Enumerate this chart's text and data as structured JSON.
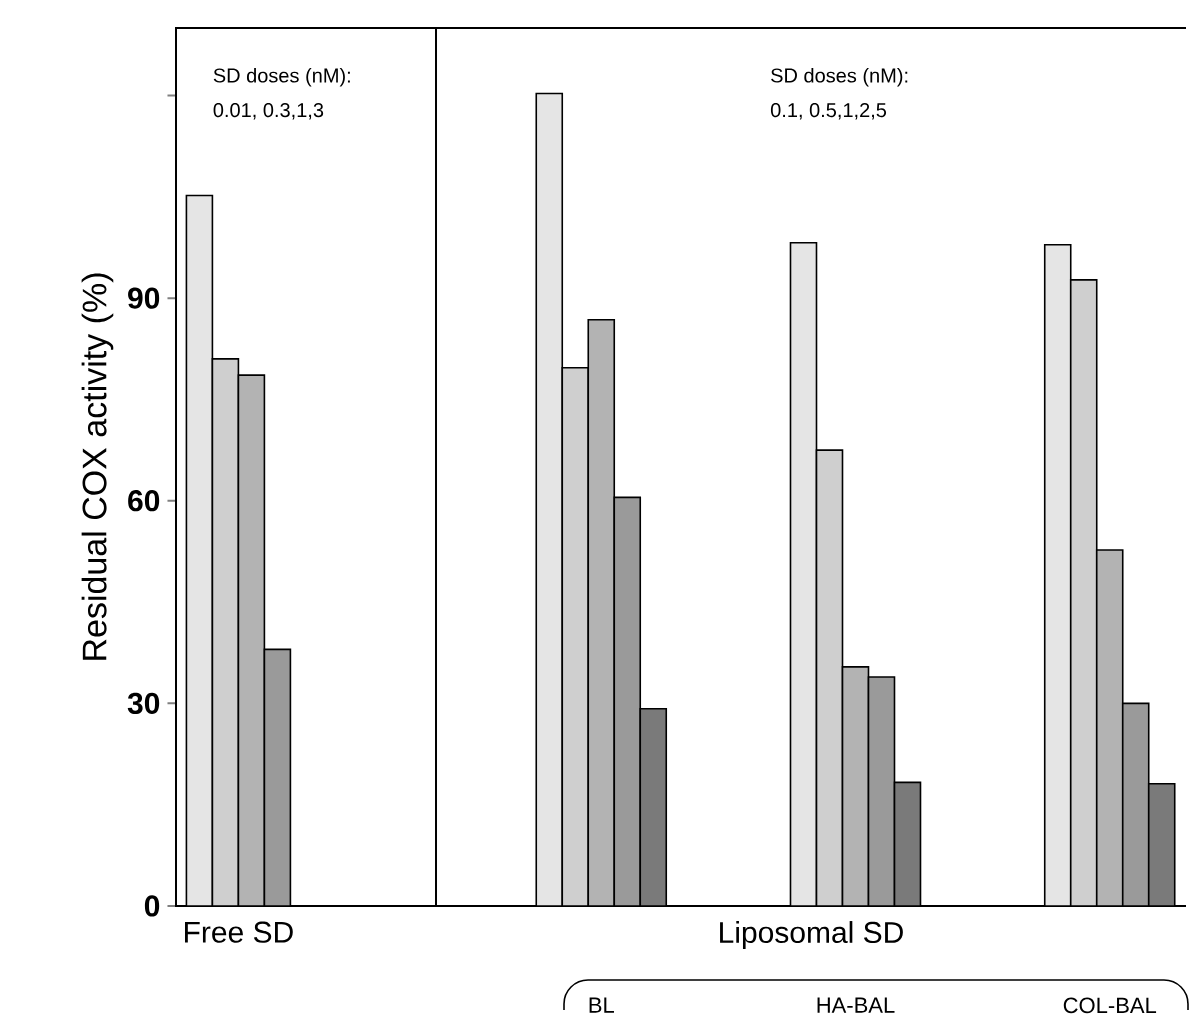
{
  "chart_data": [
    {
      "type": "bar",
      "ylabel": "Residual COX activity (%)",
      "categories": [
        "Free SD"
      ],
      "series": [
        {
          "color": "#e5e5e5",
          "values": [
            105.2
          ]
        },
        {
          "color": "#cfcfcf",
          "values": [
            81
          ]
        },
        {
          "color": "#b3b3b3",
          "values": [
            78.6
          ]
        },
        {
          "color": "#9a9a9a",
          "values": [
            38
          ]
        }
      ],
      "ylim": [
        0,
        130
      ],
      "yticks": [
        0,
        30,
        60,
        90,
        {
          "value": 120,
          "label": null
        }
      ],
      "annotations": [
        "SD doses (nM):",
        "0.01, 0.3,1,3"
      ]
    },
    {
      "type": "bar",
      "xlabel": "Liposomal SD",
      "categories": [
        "BL",
        "HA-BAL",
        "COL-BAL"
      ],
      "series": [
        {
          "color": "#e5e5e5",
          "values": [
            120.3,
            98.2,
            97.9
          ]
        },
        {
          "color": "#cfcfcf",
          "values": [
            79.7,
            67.5,
            92.7
          ]
        },
        {
          "color": "#b3b3b3",
          "values": [
            86.8,
            35.4,
            52.7
          ]
        },
        {
          "color": "#9a9a9a",
          "values": [
            60.5,
            33.9,
            30
          ]
        },
        {
          "color": "#7a7a7a",
          "values": [
            29.2,
            18.3,
            18.1
          ]
        }
      ],
      "ylim": [
        0,
        130
      ],
      "tick_labels": "x",
      "annotations": [
        "SD doses (nM):",
        "0.1, 0.5,1,2,5"
      ]
    }
  ]
}
